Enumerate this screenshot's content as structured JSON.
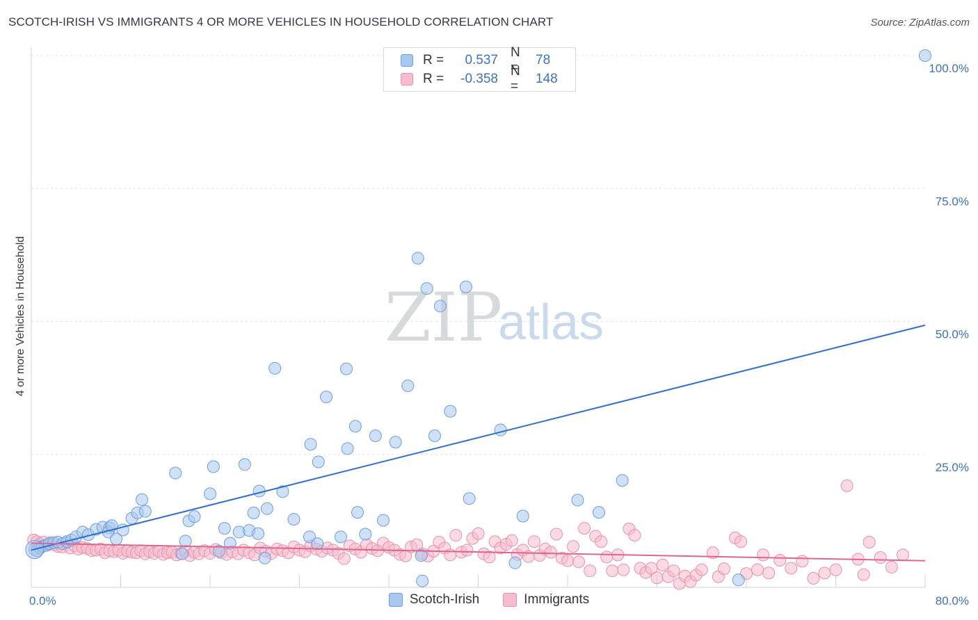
{
  "header": {
    "title": "SCOTCH-IRISH VS IMMIGRANTS 4 OR MORE VEHICLES IN HOUSEHOLD CORRELATION CHART",
    "source": "Source: ZipAtlas.com"
  },
  "watermark": {
    "zip": "ZIP",
    "atlas": "atlas"
  },
  "legend": {
    "rows": [
      {
        "r_label": "R =",
        "r_value": "0.537",
        "n_label": "N =",
        "n_value": "78",
        "color": "#a9c8f0",
        "stroke": "#6b9de0"
      },
      {
        "r_label": "R =",
        "r_value": "-0.358",
        "n_label": "N =",
        "n_value": "148",
        "color": "#f7bccd",
        "stroke": "#e98fab"
      }
    ]
  },
  "bottom_legend": [
    {
      "label": "Scotch-Irish",
      "color": "#a9c8f0",
      "stroke": "#6b9de0"
    },
    {
      "label": "Immigrants",
      "color": "#f7bccd",
      "stroke": "#e98fab"
    }
  ],
  "chart_data": {
    "type": "scatter",
    "title": "SCOTCH-IRISH VS IMMIGRANTS 4 OR MORE VEHICLES IN HOUSEHOLD CORRELATION CHART",
    "xlabel": "",
    "ylabel": "4 or more Vehicles in Household",
    "xlim": [
      0,
      80
    ],
    "ylim": [
      0,
      100
    ],
    "x_tick_labels": [
      {
        "value": 0,
        "label": "0.0%"
      },
      {
        "value": 80,
        "label": "80.0%"
      }
    ],
    "y_tick_labels": [
      {
        "value": 25,
        "label": "25.0%"
      },
      {
        "value": 50,
        "label": "50.0%"
      },
      {
        "value": 75,
        "label": "75.0%"
      },
      {
        "value": 100,
        "label": "100.0%"
      }
    ],
    "grid": true,
    "series": [
      {
        "name": "Scotch-Irish",
        "color": "#a9c8f0",
        "stroke": "#6b9de0",
        "trend": {
          "x": [
            0,
            80
          ],
          "y": [
            7.0,
            49.3
          ],
          "color": "#2f6fce"
        },
        "points": [
          [
            0.3,
            7.1
          ],
          [
            0.5,
            6.9
          ],
          [
            0.8,
            7.4
          ],
          [
            1.0,
            7.7
          ],
          [
            1.3,
            7.9
          ],
          [
            1.6,
            8.2
          ],
          [
            2.0,
            8.4
          ],
          [
            2.4,
            8.5
          ],
          [
            2.8,
            8.2
          ],
          [
            3.2,
            8.6
          ],
          [
            3.6,
            8.9
          ],
          [
            4.0,
            9.5
          ],
          [
            4.6,
            10.4
          ],
          [
            5.1,
            9.9
          ],
          [
            5.8,
            10.9
          ],
          [
            6.4,
            11.3
          ],
          [
            7.0,
            11.2
          ],
          [
            6.9,
            10.4
          ],
          [
            7.2,
            11.6
          ],
          [
            7.6,
            9.1
          ],
          [
            8.2,
            10.8
          ],
          [
            9.0,
            13.0
          ],
          [
            9.5,
            14.0
          ],
          [
            9.9,
            16.5
          ],
          [
            10.2,
            14.3
          ],
          [
            12.9,
            21.5
          ],
          [
            13.8,
            8.7
          ],
          [
            14.1,
            12.5
          ],
          [
            14.6,
            13.3
          ],
          [
            16.0,
            17.6
          ],
          [
            16.3,
            22.7
          ],
          [
            17.3,
            11.1
          ],
          [
            17.8,
            8.3
          ],
          [
            18.6,
            10.4
          ],
          [
            19.1,
            23.1
          ],
          [
            19.5,
            10.7
          ],
          [
            19.9,
            14.0
          ],
          [
            20.4,
            18.1
          ],
          [
            20.9,
            5.5
          ],
          [
            21.1,
            14.8
          ],
          [
            21.8,
            41.2
          ],
          [
            22.5,
            18.0
          ],
          [
            23.5,
            12.8
          ],
          [
            24.9,
            9.5
          ],
          [
            25.0,
            26.9
          ],
          [
            25.7,
            23.6
          ],
          [
            26.4,
            35.8
          ],
          [
            27.7,
            9.5
          ],
          [
            28.2,
            41.1
          ],
          [
            28.3,
            26.1
          ],
          [
            29.0,
            30.3
          ],
          [
            29.2,
            14.1
          ],
          [
            29.9,
            10.0
          ],
          [
            30.8,
            28.5
          ],
          [
            31.5,
            12.6
          ],
          [
            32.6,
            27.3
          ],
          [
            33.7,
            37.9
          ],
          [
            34.6,
            61.9
          ],
          [
            35.4,
            56.2
          ],
          [
            36.1,
            28.5
          ],
          [
            36.6,
            52.9
          ],
          [
            37.5,
            33.1
          ],
          [
            38.9,
            56.5
          ],
          [
            39.2,
            16.7
          ],
          [
            42.0,
            29.6
          ],
          [
            43.3,
            4.6
          ],
          [
            44.0,
            13.4
          ],
          [
            48.9,
            16.4
          ],
          [
            50.8,
            14.1
          ],
          [
            52.9,
            20.1
          ],
          [
            35.0,
            1.2
          ],
          [
            63.3,
            1.4
          ],
          [
            34.9,
            6.0
          ],
          [
            25.6,
            8.2
          ],
          [
            16.8,
            6.8
          ],
          [
            13.5,
            6.3
          ],
          [
            80.0,
            100.0
          ],
          [
            20.3,
            10.1
          ]
        ]
      },
      {
        "name": "Immigrants",
        "color": "#f7bccd",
        "stroke": "#e98fab",
        "trend": {
          "x": [
            0,
            80
          ],
          "y": [
            8.3,
            5.0
          ],
          "color": "#e0648c"
        },
        "points": [
          [
            0.2,
            8.9
          ],
          [
            0.5,
            8.6
          ],
          [
            0.8,
            8.2
          ],
          [
            1.1,
            8.5
          ],
          [
            1.4,
            7.9
          ],
          [
            1.7,
            8.4
          ],
          [
            2.0,
            8.0
          ],
          [
            2.4,
            7.7
          ],
          [
            2.8,
            7.6
          ],
          [
            3.1,
            8.3
          ],
          [
            3.5,
            7.4
          ],
          [
            3.9,
            7.8
          ],
          [
            4.2,
            7.2
          ],
          [
            4.6,
            7.5
          ],
          [
            5.0,
            7.3
          ],
          [
            5.4,
            6.9
          ],
          [
            5.8,
            7.0
          ],
          [
            6.2,
            7.2
          ],
          [
            6.6,
            6.5
          ],
          [
            7.0,
            6.9
          ],
          [
            7.4,
            6.7
          ],
          [
            7.8,
            7.0
          ],
          [
            8.2,
            6.4
          ],
          [
            8.6,
            6.8
          ],
          [
            9.0,
            6.6
          ],
          [
            9.4,
            6.5
          ],
          [
            9.8,
            6.9
          ],
          [
            10.2,
            6.3
          ],
          [
            10.6,
            6.7
          ],
          [
            11.0,
            6.4
          ],
          [
            11.4,
            6.8
          ],
          [
            11.8,
            6.2
          ],
          [
            12.2,
            6.5
          ],
          [
            12.6,
            6.6
          ],
          [
            13.0,
            6.1
          ],
          [
            13.4,
            6.4
          ],
          [
            13.8,
            6.8
          ],
          [
            14.2,
            6.0
          ],
          [
            14.6,
            6.6
          ],
          [
            15.0,
            6.3
          ],
          [
            15.5,
            6.9
          ],
          [
            16.0,
            6.4
          ],
          [
            16.5,
            7.1
          ],
          [
            17.0,
            6.5
          ],
          [
            17.5,
            6.2
          ],
          [
            18.0,
            6.7
          ],
          [
            18.5,
            6.3
          ],
          [
            19.0,
            7.0
          ],
          [
            19.5,
            6.5
          ],
          [
            20.0,
            6.1
          ],
          [
            20.5,
            7.4
          ],
          [
            21.0,
            6.8
          ],
          [
            21.5,
            6.4
          ],
          [
            22.0,
            7.2
          ],
          [
            22.5,
            6.9
          ],
          [
            23.0,
            6.5
          ],
          [
            23.5,
            7.6
          ],
          [
            24.0,
            7.0
          ],
          [
            24.5,
            6.7
          ],
          [
            25.0,
            7.8
          ],
          [
            25.5,
            7.2
          ],
          [
            26.0,
            6.8
          ],
          [
            26.5,
            7.4
          ],
          [
            27.0,
            7.0
          ],
          [
            27.5,
            6.4
          ],
          [
            28.0,
            5.4
          ],
          [
            28.5,
            7.8
          ],
          [
            29.0,
            7.2
          ],
          [
            29.5,
            6.6
          ],
          [
            30.0,
            8.0
          ],
          [
            30.5,
            7.3
          ],
          [
            31.0,
            6.9
          ],
          [
            31.5,
            8.3
          ],
          [
            32.0,
            7.5
          ],
          [
            32.5,
            7.0
          ],
          [
            33.0,
            6.2
          ],
          [
            33.5,
            5.9
          ],
          [
            34.0,
            7.6
          ],
          [
            34.5,
            8.0
          ],
          [
            35.0,
            6.3
          ],
          [
            35.5,
            5.9
          ],
          [
            36.0,
            6.8
          ],
          [
            36.5,
            8.5
          ],
          [
            37.0,
            7.4
          ],
          [
            37.5,
            6.1
          ],
          [
            38.0,
            9.8
          ],
          [
            38.5,
            6.6
          ],
          [
            39.0,
            7.0
          ],
          [
            39.5,
            9.2
          ],
          [
            40.0,
            10.1
          ],
          [
            40.5,
            6.3
          ],
          [
            41.0,
            5.7
          ],
          [
            41.5,
            8.6
          ],
          [
            42.0,
            7.4
          ],
          [
            42.5,
            8.1
          ],
          [
            43.0,
            8.8
          ],
          [
            43.5,
            6.2
          ],
          [
            44.0,
            7.0
          ],
          [
            44.5,
            5.8
          ],
          [
            45.0,
            8.6
          ],
          [
            45.5,
            6.0
          ],
          [
            46.0,
            7.2
          ],
          [
            46.5,
            6.6
          ],
          [
            47.0,
            10.0
          ],
          [
            47.5,
            5.5
          ],
          [
            48.0,
            5.0
          ],
          [
            48.5,
            7.7
          ],
          [
            49.0,
            4.8
          ],
          [
            49.5,
            11.1
          ],
          [
            50.0,
            3.1
          ],
          [
            50.5,
            9.6
          ],
          [
            51.0,
            8.6
          ],
          [
            51.5,
            5.7
          ],
          [
            52.0,
            3.1
          ],
          [
            52.5,
            6.1
          ],
          [
            53.0,
            3.3
          ],
          [
            53.5,
            11.0
          ],
          [
            54.0,
            9.8
          ],
          [
            54.5,
            3.6
          ],
          [
            55.0,
            2.8
          ],
          [
            55.5,
            3.6
          ],
          [
            56.0,
            1.8
          ],
          [
            56.5,
            4.2
          ],
          [
            57.0,
            2.0
          ],
          [
            57.5,
            3.1
          ],
          [
            58.0,
            0.7
          ],
          [
            58.5,
            2.1
          ],
          [
            59.0,
            1.1
          ],
          [
            59.5,
            2.3
          ],
          [
            60.0,
            3.3
          ],
          [
            61.0,
            6.5
          ],
          [
            61.5,
            2.0
          ],
          [
            62.0,
            3.5
          ],
          [
            63.0,
            9.3
          ],
          [
            63.5,
            8.6
          ],
          [
            64.0,
            2.6
          ],
          [
            65.0,
            3.3
          ],
          [
            65.5,
            6.1
          ],
          [
            66.0,
            2.7
          ],
          [
            67.0,
            5.1
          ],
          [
            68.0,
            3.6
          ],
          [
            69.0,
            4.9
          ],
          [
            70.0,
            1.7
          ],
          [
            71.0,
            2.7
          ],
          [
            72.0,
            3.3
          ],
          [
            73.0,
            19.1
          ],
          [
            74.0,
            5.3
          ],
          [
            74.5,
            2.4
          ],
          [
            75.0,
            8.5
          ],
          [
            76.0,
            5.6
          ],
          [
            77.0,
            3.8
          ],
          [
            78.0,
            6.1
          ]
        ]
      }
    ]
  }
}
